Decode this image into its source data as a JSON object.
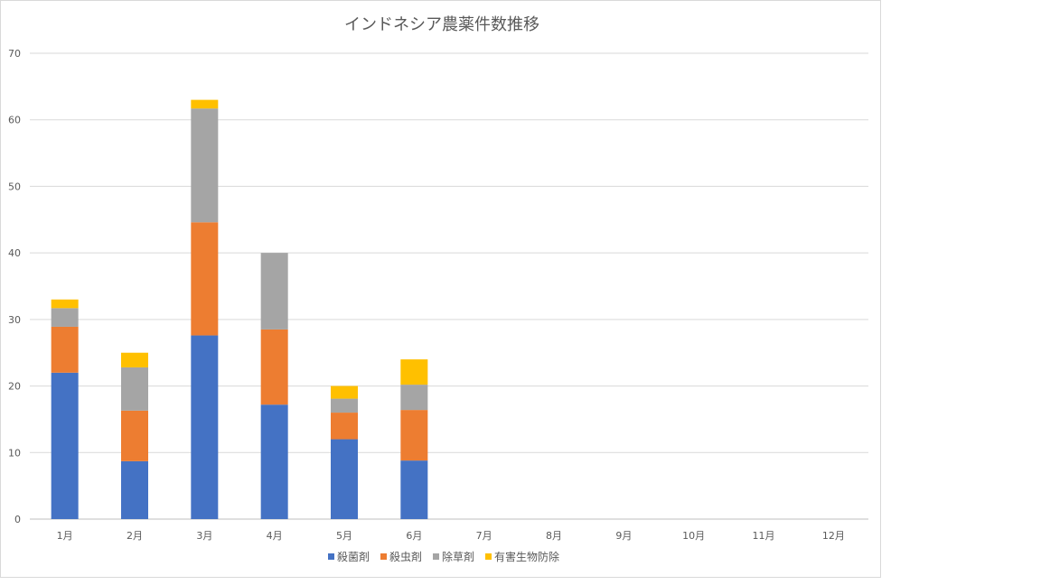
{
  "chart_data": {
    "type": "bar",
    "stacked": true,
    "title": "インドネシア農薬件数推移",
    "xlabel": "",
    "ylabel": "",
    "categories": [
      "1月",
      "2月",
      "3月",
      "4月",
      "5月",
      "6月",
      "7月",
      "8月",
      "9月",
      "10月",
      "11月",
      "12月"
    ],
    "series": [
      {
        "name": "殺菌剤",
        "color": "#4472c4",
        "values": [
          22,
          8.7,
          27.6,
          17.2,
          12,
          8.8,
          0,
          0,
          0,
          0,
          0,
          0
        ]
      },
      {
        "name": "殺虫剤",
        "color": "#ed7d31",
        "values": [
          6.9,
          7.6,
          17,
          11.3,
          4,
          7.6,
          0,
          0,
          0,
          0,
          0,
          0
        ]
      },
      {
        "name": "除草剤",
        "color": "#a5a5a5",
        "values": [
          2.8,
          6.5,
          17.1,
          11.5,
          2.1,
          3.8,
          0,
          0,
          0,
          0,
          0,
          0
        ]
      },
      {
        "name": "有害生物防除",
        "color": "#ffc000",
        "values": [
          1.3,
          2.2,
          1.3,
          0,
          1.9,
          3.8,
          0,
          0,
          0,
          0,
          0,
          0
        ]
      }
    ],
    "ylim": [
      0,
      70
    ],
    "yticks": [
      0,
      10,
      20,
      30,
      40,
      50,
      60,
      70
    ],
    "grid": true,
    "legend_position": "bottom"
  }
}
